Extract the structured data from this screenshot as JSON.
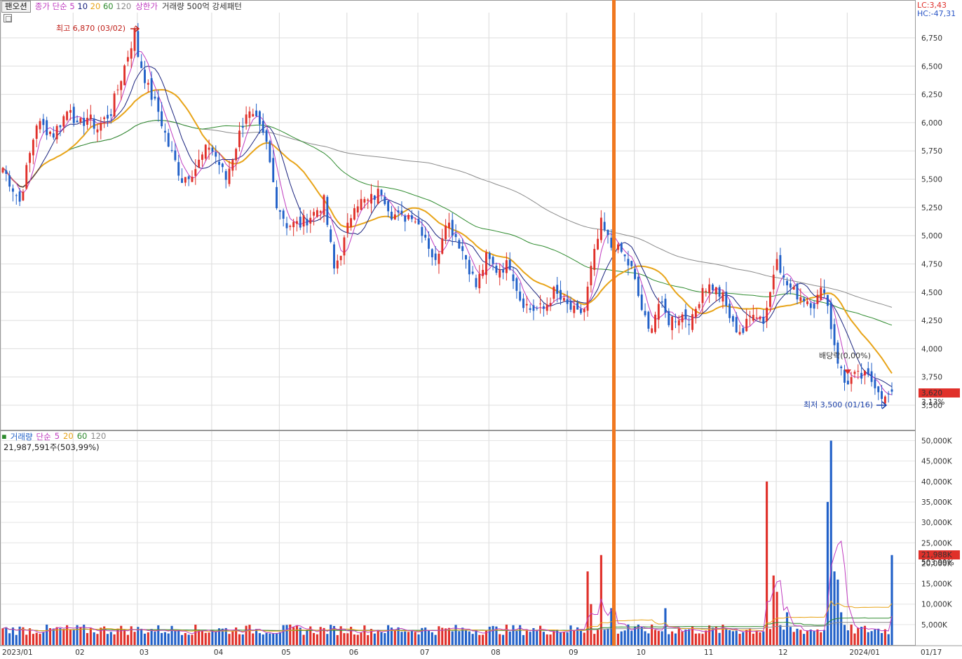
{
  "toolbar": {
    "stock_name": "팬오션",
    "price_legend": "종가 단순",
    "ma_periods": [
      "5",
      "10",
      "20",
      "60",
      "120"
    ],
    "upper_limit": "상한가",
    "volume_pattern": "거래량 500억 강세패턴"
  },
  "volume_legend": {
    "title": "거래량",
    "ma_label": "단순",
    "periods": [
      "5",
      "20",
      "60",
      "120"
    ],
    "info": "21,987,591주(503,99%)"
  },
  "corner": {
    "lc": "LC:3,43",
    "hc": "HC:-47,31"
  },
  "annotations": {
    "high": "최고 6,870 (03/02)",
    "low": "최저 3,500 (01/16)",
    "dividend": "배당락(0,00%)"
  },
  "current": {
    "price": "3,620",
    "change": "3,13%",
    "volume": "21,988K",
    "volume_change": "503,99%"
  },
  "colors": {
    "up": "#e0302a",
    "down": "#2160c8",
    "ma5": "#c03cc0",
    "ma10": "#1a237e",
    "ma20": "#e8a418",
    "ma60": "#2e8b2e",
    "ma120": "#8a8a8a",
    "marker": "#f07820"
  },
  "chart_data": [
    {
      "type": "candlestick",
      "title": "",
      "ylim": [
        3350,
        7000
      ],
      "yticks": [
        3500,
        3750,
        4000,
        4250,
        4500,
        4750,
        5000,
        5250,
        5500,
        5750,
        6000,
        6250,
        6500,
        6750
      ],
      "ytick_labels": [
        "3,500",
        "3,750",
        "4,000",
        "4,250",
        "4,500",
        "4,750",
        "5,000",
        "5,250",
        "5,500",
        "5,750",
        "6,000",
        "6,250",
        "6,500",
        "6,750"
      ],
      "xtick_labels": [
        "2023/01",
        "02",
        "03",
        "04",
        "05",
        "06",
        "07",
        "08",
        "09",
        "10",
        "11",
        "12",
        "2024/01",
        "01/17"
      ],
      "month_starts": [
        0,
        21,
        40,
        62,
        82,
        102,
        123,
        144,
        167,
        187,
        207,
        229,
        250,
        261
      ],
      "series_names": [
        "5",
        "10",
        "20",
        "60",
        "120"
      ],
      "anchors": [
        [
          0,
          5600
        ],
        [
          5,
          5300
        ],
        [
          10,
          6000
        ],
        [
          15,
          5900
        ],
        [
          20,
          6150
        ],
        [
          22,
          5950
        ],
        [
          25,
          6050
        ],
        [
          28,
          5950
        ],
        [
          32,
          6100
        ],
        [
          36,
          6500
        ],
        [
          39,
          6800
        ],
        [
          40,
          6600
        ],
        [
          43,
          6300
        ],
        [
          46,
          6100
        ],
        [
          49,
          5800
        ],
        [
          53,
          5500
        ],
        [
          57,
          5600
        ],
        [
          61,
          5800
        ],
        [
          63,
          5700
        ],
        [
          66,
          5500
        ],
        [
          69,
          5800
        ],
        [
          72,
          6100
        ],
        [
          75,
          6000
        ],
        [
          78,
          5800
        ],
        [
          81,
          5300
        ],
        [
          84,
          5100
        ],
        [
          88,
          5100
        ],
        [
          92,
          5200
        ],
        [
          95,
          5300
        ],
        [
          98,
          4700
        ],
        [
          101,
          4950
        ],
        [
          104,
          5300
        ],
        [
          108,
          5300
        ],
        [
          112,
          5400
        ],
        [
          115,
          5200
        ],
        [
          118,
          5150
        ],
        [
          121,
          5200
        ],
        [
          125,
          5000
        ],
        [
          128,
          4750
        ],
        [
          131,
          5150
        ],
        [
          134,
          5000
        ],
        [
          137,
          4800
        ],
        [
          140,
          4550
        ],
        [
          143,
          4800
        ],
        [
          146,
          4700
        ],
        [
          150,
          4750
        ],
        [
          153,
          4450
        ],
        [
          156,
          4350
        ],
        [
          160,
          4350
        ],
        [
          163,
          4500
        ],
        [
          166,
          4400
        ],
        [
          170,
          4300
        ],
        [
          172,
          4350
        ],
        [
          174,
          4700
        ],
        [
          177,
          5100
        ],
        [
          180,
          4900
        ],
        [
          183,
          4850
        ],
        [
          186,
          4700
        ],
        [
          189,
          4350
        ],
        [
          191,
          4150
        ],
        [
          194,
          4400
        ],
        [
          197,
          4250
        ],
        [
          201,
          4300
        ],
        [
          204,
          4250
        ],
        [
          207,
          4550
        ],
        [
          210,
          4550
        ],
        [
          213,
          4450
        ],
        [
          216,
          4200
        ],
        [
          219,
          4150
        ],
        [
          222,
          4350
        ],
        [
          225,
          4250
        ],
        [
          227,
          4500
        ],
        [
          229,
          4850
        ],
        [
          231,
          4600
        ],
        [
          234,
          4500
        ],
        [
          237,
          4450
        ],
        [
          240,
          4400
        ],
        [
          243,
          4550
        ],
        [
          245,
          4200
        ],
        [
          247,
          3900
        ],
        [
          249,
          3700
        ],
        [
          252,
          3750
        ],
        [
          255,
          3750
        ],
        [
          258,
          3700
        ],
        [
          261,
          3550
        ],
        [
          263,
          3620
        ]
      ],
      "date_count": 264,
      "seed": 7
    },
    {
      "type": "bar",
      "title": "",
      "ylim": [
        0,
        53000
      ],
      "yticks": [
        5000,
        10000,
        15000,
        20000,
        25000,
        30000,
        35000,
        40000,
        45000,
        50000
      ],
      "ytick_labels": [
        "5,000K",
        "10,000K",
        "15,000K",
        "20,000K",
        "25,000K",
        "30,000K",
        "35,000K",
        "40,000K",
        "45,000K",
        "50,000K"
      ],
      "unit": "K",
      "series_names": [
        "5",
        "20",
        "60",
        "120"
      ],
      "spikes": [
        [
          173,
          18000
        ],
        [
          174,
          10000
        ],
        [
          177,
          22000
        ],
        [
          180,
          9000
        ],
        [
          181,
          7000
        ],
        [
          185,
          5000
        ],
        [
          196,
          9000
        ],
        [
          226,
          40000
        ],
        [
          228,
          17000
        ],
        [
          229,
          13000
        ],
        [
          232,
          8000
        ],
        [
          244,
          35000
        ],
        [
          245,
          50000
        ],
        [
          246,
          18000
        ],
        [
          247,
          16000
        ],
        [
          248,
          8000
        ],
        [
          263,
          22000
        ]
      ],
      "baseline": 3200
    }
  ]
}
